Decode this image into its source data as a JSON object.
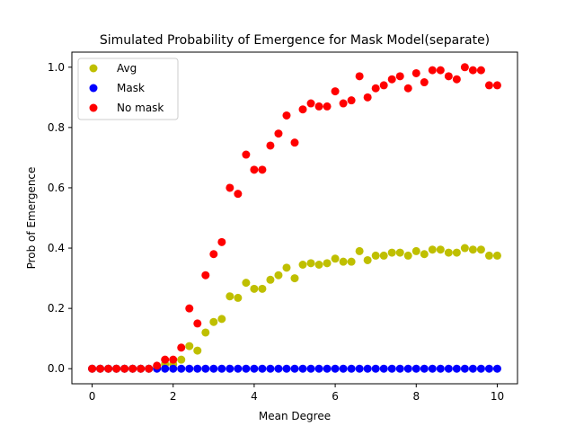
{
  "chart_data": {
    "type": "scatter",
    "title": "Simulated Probability of Emergence for Mask Model(separate)",
    "xlabel": "Mean Degree",
    "ylabel": "Prob of Emergence",
    "xlim": [
      -0.5,
      10.5
    ],
    "ylim": [
      -0.05,
      1.05
    ],
    "x_ticks": [
      0,
      2,
      4,
      6,
      8,
      10
    ],
    "x_tick_labels": [
      "0",
      "2",
      "4",
      "6",
      "8",
      "10"
    ],
    "y_ticks": [
      0.0,
      0.2,
      0.4,
      0.6,
      0.8,
      1.0
    ],
    "y_tick_labels": [
      "0.0",
      "0.2",
      "0.4",
      "0.6",
      "0.8",
      "1.0"
    ],
    "grid": false,
    "legend_position": "upper-left",
    "x": [
      0.0,
      0.2,
      0.4,
      0.6,
      0.8,
      1.0,
      1.2,
      1.4,
      1.6,
      1.8,
      2.0,
      2.2,
      2.4,
      2.6,
      2.8,
      3.0,
      3.2,
      3.4,
      3.6,
      3.8,
      4.0,
      4.2,
      4.4,
      4.6,
      4.8,
      5.0,
      5.2,
      5.4,
      5.6,
      5.8,
      6.0,
      6.2,
      6.4,
      6.6,
      6.8,
      7.0,
      7.2,
      7.4,
      7.6,
      7.8,
      8.0,
      8.2,
      8.4,
      8.6,
      8.8,
      9.0,
      9.2,
      9.4,
      9.6,
      9.8,
      10.0
    ],
    "series": [
      {
        "name": "Avg",
        "color": "#bfbf00",
        "values": [
          0.0,
          0.0,
          0.0,
          0.0,
          0.0,
          0.0,
          0.0,
          0.0,
          0.005,
          0.015,
          0.015,
          0.03,
          0.075,
          0.06,
          0.12,
          0.155,
          0.165,
          0.24,
          0.235,
          0.285,
          0.265,
          0.265,
          0.295,
          0.31,
          0.335,
          0.3,
          0.345,
          0.35,
          0.345,
          0.35,
          0.365,
          0.355,
          0.355,
          0.39,
          0.36,
          0.375,
          0.375,
          0.385,
          0.385,
          0.375,
          0.39,
          0.38,
          0.395,
          0.395,
          0.385,
          0.385,
          0.4,
          0.395,
          0.395,
          0.375,
          0.375
        ]
      },
      {
        "name": "Mask",
        "color": "#0000ff",
        "values": [
          0.0,
          0.0,
          0.0,
          0.0,
          0.0,
          0.0,
          0.0,
          0.0,
          0.0,
          0.0,
          0.0,
          0.0,
          0.0,
          0.0,
          0.0,
          0.0,
          0.0,
          0.0,
          0.0,
          0.0,
          0.0,
          0.0,
          0.0,
          0.0,
          0.0,
          0.0,
          0.0,
          0.0,
          0.0,
          0.0,
          0.0,
          0.0,
          0.0,
          0.0,
          0.0,
          0.0,
          0.0,
          0.0,
          0.0,
          0.0,
          0.0,
          0.0,
          0.0,
          0.0,
          0.0,
          0.0,
          0.0,
          0.0,
          0.0,
          0.0,
          0.0
        ]
      },
      {
        "name": "No mask",
        "color": "#ff0000",
        "values": [
          0.0,
          0.0,
          0.0,
          0.0,
          0.0,
          0.0,
          0.0,
          0.0,
          0.01,
          0.03,
          0.03,
          0.07,
          0.2,
          0.15,
          0.31,
          0.38,
          0.42,
          0.6,
          0.58,
          0.71,
          0.66,
          0.66,
          0.74,
          0.78,
          0.84,
          0.75,
          0.86,
          0.88,
          0.87,
          0.87,
          0.92,
          0.88,
          0.89,
          0.97,
          0.9,
          0.93,
          0.94,
          0.96,
          0.97,
          0.93,
          0.98,
          0.95,
          0.99,
          0.99,
          0.97,
          0.96,
          1.0,
          0.99,
          0.99,
          0.94,
          0.94
        ]
      }
    ]
  }
}
